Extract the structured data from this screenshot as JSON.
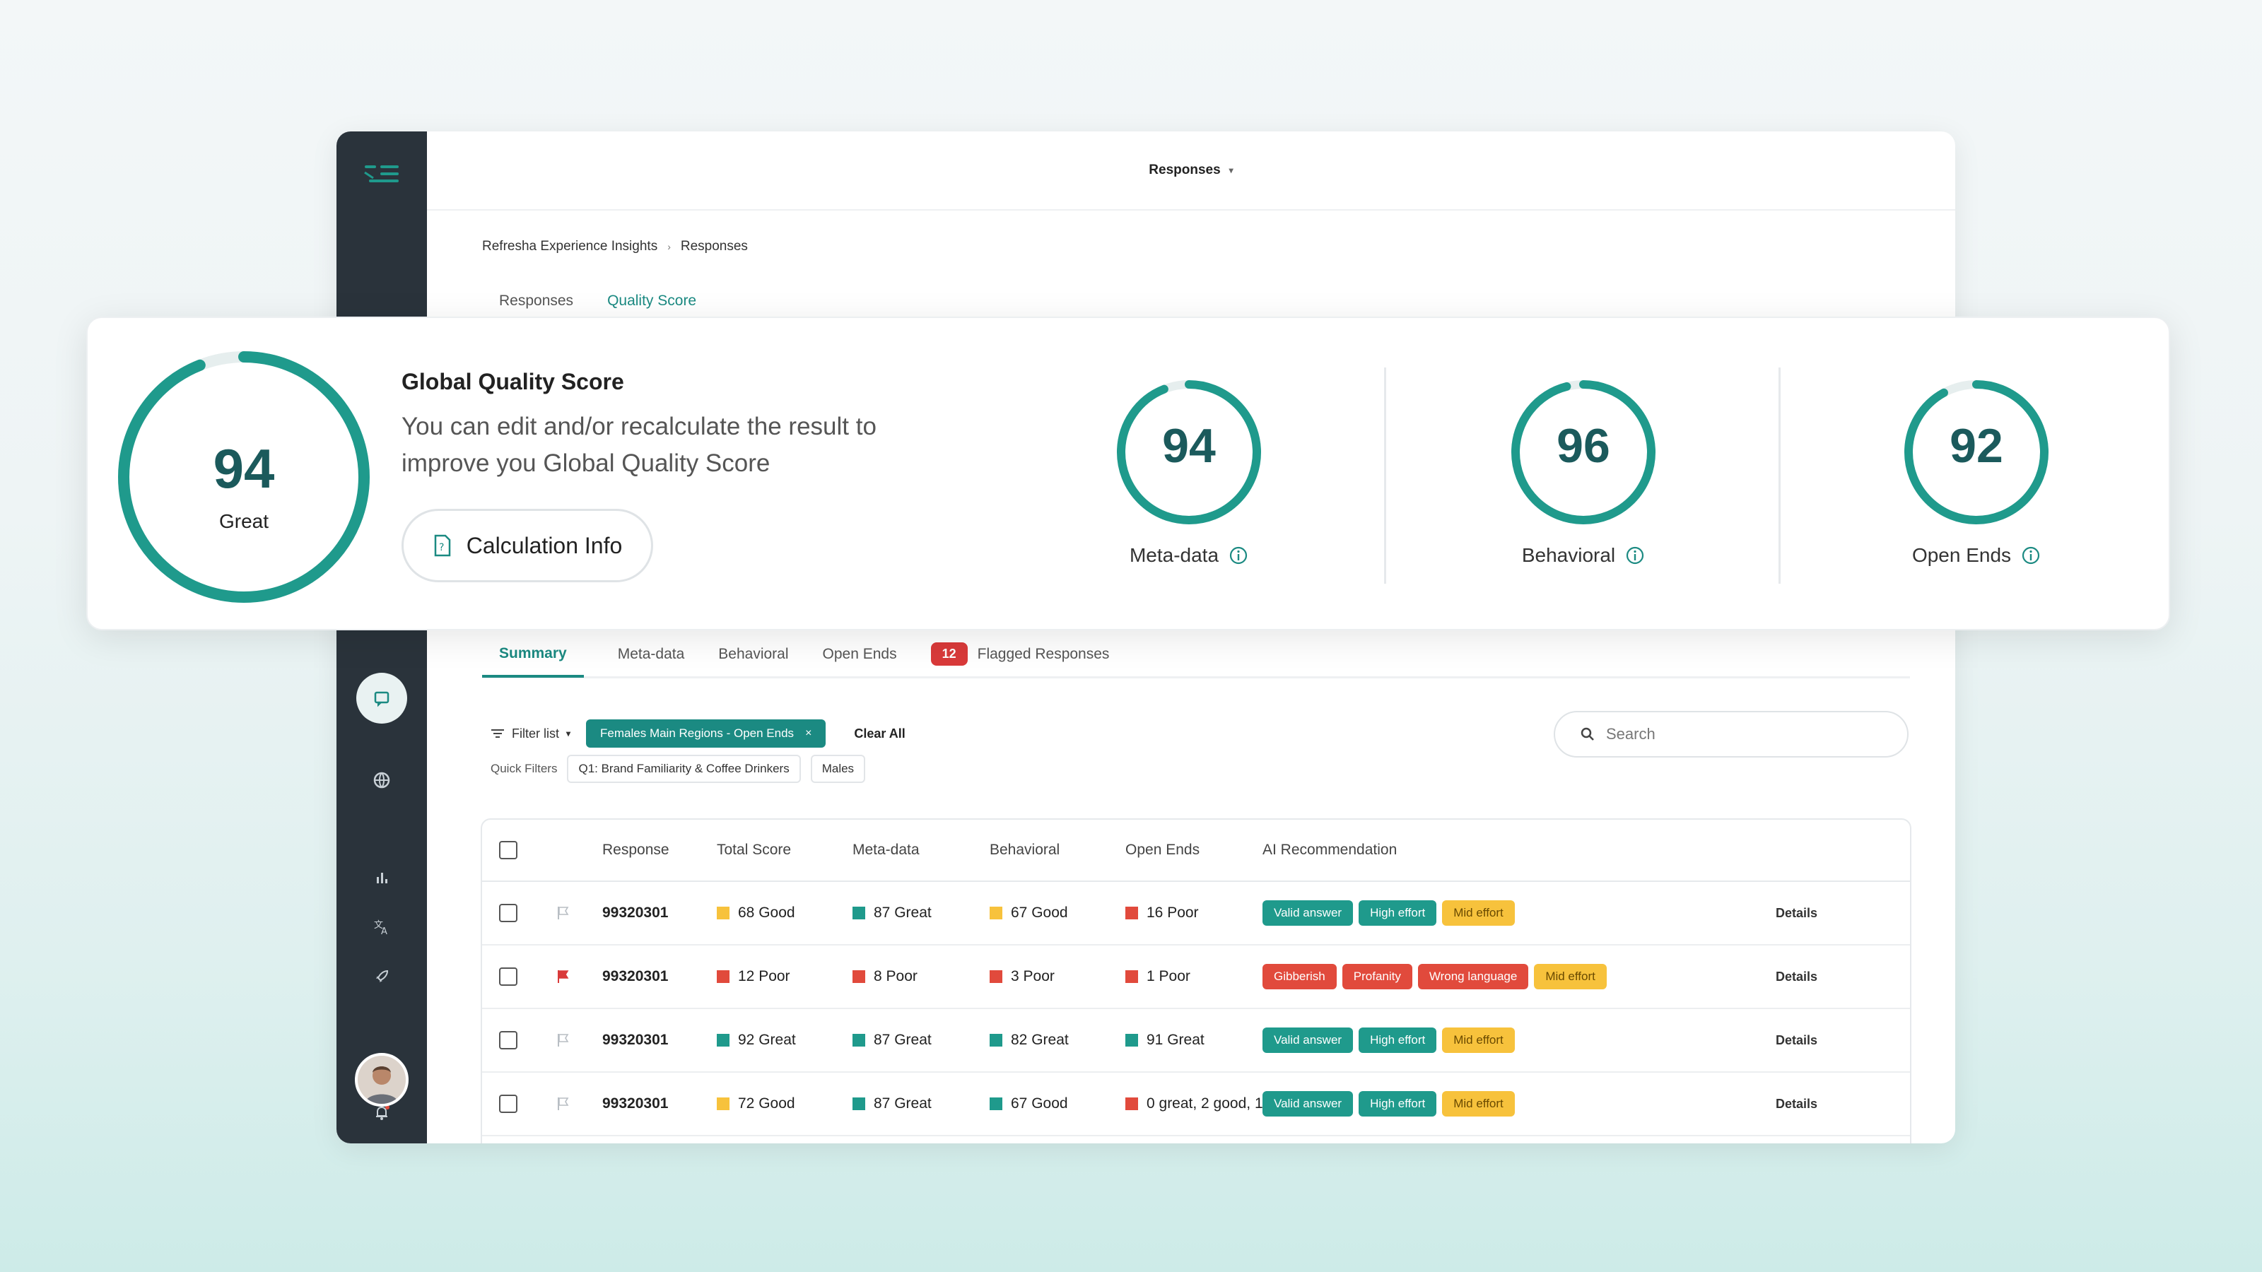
{
  "topbar": {
    "title": "Responses"
  },
  "breadcrumb": {
    "root": "Refresha Experience Insights",
    "current": "Responses"
  },
  "page_tabs": [
    {
      "label": "Responses",
      "active": false
    },
    {
      "label": "Quality Score",
      "active": true
    }
  ],
  "overview": {
    "global": {
      "score": "94",
      "rating": "Great",
      "title": "Global Quality Score",
      "description": "You can edit and/or recalculate the result to improve you Global Quality Score",
      "button_label": "Calculation Info",
      "fill": 0.94
    },
    "scores": [
      {
        "score": "94",
        "label": "Meta-data",
        "fill": 0.94
      },
      {
        "score": "96",
        "label": "Behavioral",
        "fill": 0.96
      },
      {
        "score": "92",
        "label": "Open Ends",
        "fill": 0.92
      }
    ]
  },
  "sub_tabs": {
    "summary": "Summary",
    "metadata": "Meta-data",
    "behavioral": "Behavioral",
    "open_ends": "Open Ends",
    "flagged_count": "12",
    "flagged": "Flagged Responses"
  },
  "filters": {
    "filter_list": "Filter list",
    "active_chip": "Females Main Regions - Open Ends",
    "clear_all": "Clear All",
    "quick_label": "Quick Filters",
    "quick": [
      "Q1: Brand Familiarity & Coffee Drinkers",
      "Males"
    ],
    "search_placeholder": "Search"
  },
  "table": {
    "headers": {
      "response": "Response",
      "total": "Total Score",
      "meta": "Meta-data",
      "behavioral": "Behavioral",
      "open_ends": "Open Ends",
      "ai": "AI Recommendation"
    },
    "details_label": "Details",
    "rows": [
      {
        "flagged": false,
        "id": "99320301",
        "total": "68 Good",
        "total_color": "#f7c23c",
        "meta": "87 Great",
        "meta_color": "#1f9a8c",
        "behavioral": "67 Good",
        "behavioral_color": "#f7c23c",
        "open_ends": "16 Poor",
        "open_ends_color": "#e14a3c",
        "tags": [
          {
            "label": "Valid answer",
            "kind": "green"
          },
          {
            "label": "High effort",
            "kind": "green"
          },
          {
            "label": "Mid effort",
            "kind": "yellow"
          }
        ]
      },
      {
        "flagged": true,
        "id": "99320301",
        "total": "12 Poor",
        "total_color": "#e14a3c",
        "meta": "8 Poor",
        "meta_color": "#e14a3c",
        "behavioral": "3 Poor",
        "behavioral_color": "#e14a3c",
        "open_ends": "1 Poor",
        "open_ends_color": "#e14a3c",
        "tags": [
          {
            "label": "Gibberish",
            "kind": "red"
          },
          {
            "label": "Profanity",
            "kind": "red"
          },
          {
            "label": "Wrong language",
            "kind": "red"
          },
          {
            "label": "Mid effort",
            "kind": "yellow"
          }
        ]
      },
      {
        "flagged": false,
        "id": "99320301",
        "total": "92 Great",
        "total_color": "#1f9a8c",
        "meta": "87 Great",
        "meta_color": "#1f9a8c",
        "behavioral": "82 Great",
        "behavioral_color": "#1f9a8c",
        "open_ends": "91 Great",
        "open_ends_color": "#1f9a8c",
        "tags": [
          {
            "label": "Valid answer",
            "kind": "green"
          },
          {
            "label": "High effort",
            "kind": "green"
          },
          {
            "label": "Mid effort",
            "kind": "yellow"
          }
        ]
      },
      {
        "flagged": false,
        "id": "99320301",
        "total": "72 Good",
        "total_color": "#f7c23c",
        "meta": "87 Great",
        "meta_color": "#1f9a8c",
        "behavioral": "67 Good",
        "behavioral_color": "#1f9a8c",
        "open_ends": "0 great, 2 good, 1",
        "open_ends_color": "#e14a3c",
        "tags": [
          {
            "label": "Valid answer",
            "kind": "green"
          },
          {
            "label": "High effort",
            "kind": "green"
          },
          {
            "label": "Mid effort",
            "kind": "yellow"
          }
        ]
      }
    ]
  },
  "colors": {
    "accent": "#1b8a82",
    "ring": "#1f9a8c",
    "sidebar": "#2a333b",
    "flag_red": "#d93a3a"
  }
}
